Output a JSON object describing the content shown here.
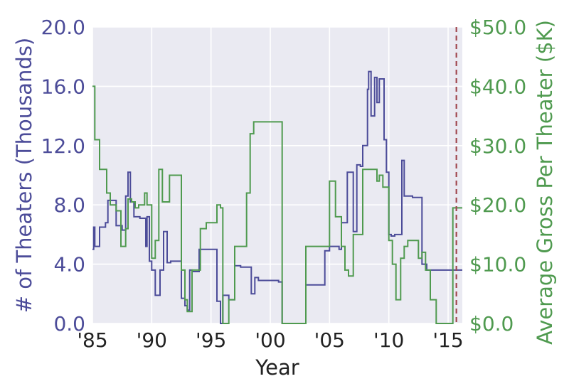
{
  "chart_data": {
    "type": "line",
    "xlabel": "Year",
    "ylabel_left": "# of Theaters (Thousands)",
    "ylabel_right": "Average Gross Per Theater ($K)",
    "xlim": [
      1985,
      2016.2
    ],
    "ylim_left": [
      0,
      20
    ],
    "ylim_right": [
      0,
      50
    ],
    "x_ticks": [
      1985,
      1990,
      1995,
      2000,
      2005,
      2010,
      2015
    ],
    "x_tick_labels": [
      "'85",
      "'90",
      "'95",
      "'00",
      "'05",
      "'10",
      "'15"
    ],
    "y_left_ticks": [
      0,
      4,
      8,
      12,
      16,
      20
    ],
    "y_left_tick_labels": [
      "0.0",
      "4.0",
      "8.0",
      "12.0",
      "16.0",
      "20.0"
    ],
    "y_right_ticks": [
      0,
      10,
      20,
      30,
      40,
      50
    ],
    "y_right_tick_labels": [
      "$0.0",
      "$10.0",
      "$20.0",
      "$30.0",
      "$40.0",
      "$50.0"
    ],
    "grid": true,
    "reference_line": {
      "x": 2015.7,
      "style": "dashed",
      "color": "#a04850"
    },
    "series": [
      {
        "name": "# of Theaters (Thousands)",
        "axis": "left",
        "color": "#4c4c99",
        "step": true,
        "x": [
          1985.0,
          1985.1,
          1985.2,
          1985.6,
          1986.1,
          1986.3,
          1987.0,
          1987.5,
          1987.8,
          1988.0,
          1988.2,
          1988.5,
          1989.0,
          1989.5,
          1989.6,
          1989.8,
          1990.0,
          1990.3,
          1990.7,
          1991.0,
          1991.3,
          1991.6,
          1992.5,
          1992.8,
          1993.0,
          1993.2,
          1993.4,
          1994.0,
          1994.4,
          1995.5,
          1995.8,
          1996.0,
          1996.5,
          1997.0,
          1997.5,
          1998.4,
          1998.7,
          1999.0,
          1999.5,
          2000.7,
          2001.0,
          2002.0,
          2003.0,
          2004.6,
          2005.0,
          2005.8,
          2006.0,
          2006.5,
          2007.0,
          2007.3,
          2007.6,
          2007.8,
          2008.2,
          2008.3,
          2008.5,
          2008.8,
          2009.0,
          2009.2,
          2009.6,
          2009.8,
          2010.0,
          2010.2,
          2010.5,
          2011.1,
          2011.3,
          2011.5,
          2012.0,
          2012.8,
          2013.2,
          2016.2
        ],
        "y": [
          5.0,
          6.5,
          5.2,
          6.5,
          6.8,
          8.3,
          6.6,
          6.3,
          8.6,
          10.2,
          8.2,
          7.2,
          7.1,
          5.2,
          7.2,
          4.2,
          3.6,
          1.9,
          3.6,
          6.2,
          4.1,
          4.2,
          1.7,
          1.2,
          0.9,
          3.6,
          3.5,
          5.0,
          5.0,
          1.5,
          0.0,
          1.9,
          1.6,
          3.9,
          3.8,
          2.0,
          3.1,
          2.9,
          2.9,
          2.8,
          0.0,
          0.0,
          2.6,
          4.9,
          5.2,
          5.0,
          6.8,
          10.2,
          6.2,
          10.7,
          10.6,
          12.0,
          15.8,
          17.0,
          14.0,
          16.6,
          14.9,
          16.5,
          12.4,
          10.2,
          6.0,
          5.9,
          6.0,
          11.0,
          8.6,
          8.6,
          8.5,
          4.0,
          3.6,
          3.6
        ]
      },
      {
        "name": "Average Gross Per Theater ($K)",
        "axis": "right",
        "color": "#4f9a4f",
        "step": true,
        "x": [
          1985.0,
          1985.2,
          1985.6,
          1986.2,
          1986.5,
          1987.0,
          1987.4,
          1987.8,
          1988.0,
          1988.3,
          1988.6,
          1988.9,
          1989.2,
          1989.4,
          1989.6,
          1990.0,
          1990.3,
          1990.6,
          1990.9,
          1991.5,
          1992.5,
          1992.8,
          1993.0,
          1993.4,
          1994.1,
          1994.6,
          1995.5,
          1995.8,
          1996.0,
          1996.5,
          1997.0,
          1997.4,
          1997.7,
          1998.0,
          1998.3,
          1998.6,
          1999.0,
          1999.5,
          2000.3,
          2000.6,
          2001.0,
          2002.5,
          2003.0,
          2004.0,
          2004.6,
          2005.0,
          2005.5,
          2006.0,
          2006.3,
          2006.6,
          2007.0,
          2007.3,
          2007.8,
          2008.0,
          2008.3,
          2008.6,
          2009.0,
          2009.2,
          2009.5,
          2010.0,
          2010.3,
          2010.6,
          2011.0,
          2011.3,
          2011.6,
          2012.5,
          2012.8,
          2013.1,
          2013.5,
          2014.0,
          2014.5,
          2015.0,
          2015.4,
          2016.2
        ],
        "y": [
          40.0,
          31.0,
          26.0,
          22.0,
          20.0,
          19.0,
          13.0,
          16.0,
          21.0,
          20.5,
          19.5,
          20.0,
          20.0,
          22.0,
          20.0,
          11.0,
          14.0,
          26.0,
          20.5,
          25.0,
          9.0,
          4.0,
          2.0,
          9.0,
          16.0,
          17.0,
          20.0,
          19.5,
          0.0,
          4.0,
          13.0,
          13.0,
          13.0,
          22.0,
          32.0,
          34.0,
          34.0,
          34.0,
          34.0,
          34.0,
          0.0,
          0.0,
          13.0,
          13.0,
          13.0,
          24.0,
          18.0,
          13.0,
          9.0,
          8.0,
          15.0,
          15.0,
          26.0,
          26.0,
          26.0,
          26.0,
          24.0,
          25.0,
          23.0,
          14.0,
          10.0,
          4.0,
          11.0,
          13.0,
          14.0,
          11.0,
          12.0,
          9.0,
          4.0,
          0.0,
          0.0,
          0.0,
          19.5,
          19.5
        ]
      }
    ]
  }
}
